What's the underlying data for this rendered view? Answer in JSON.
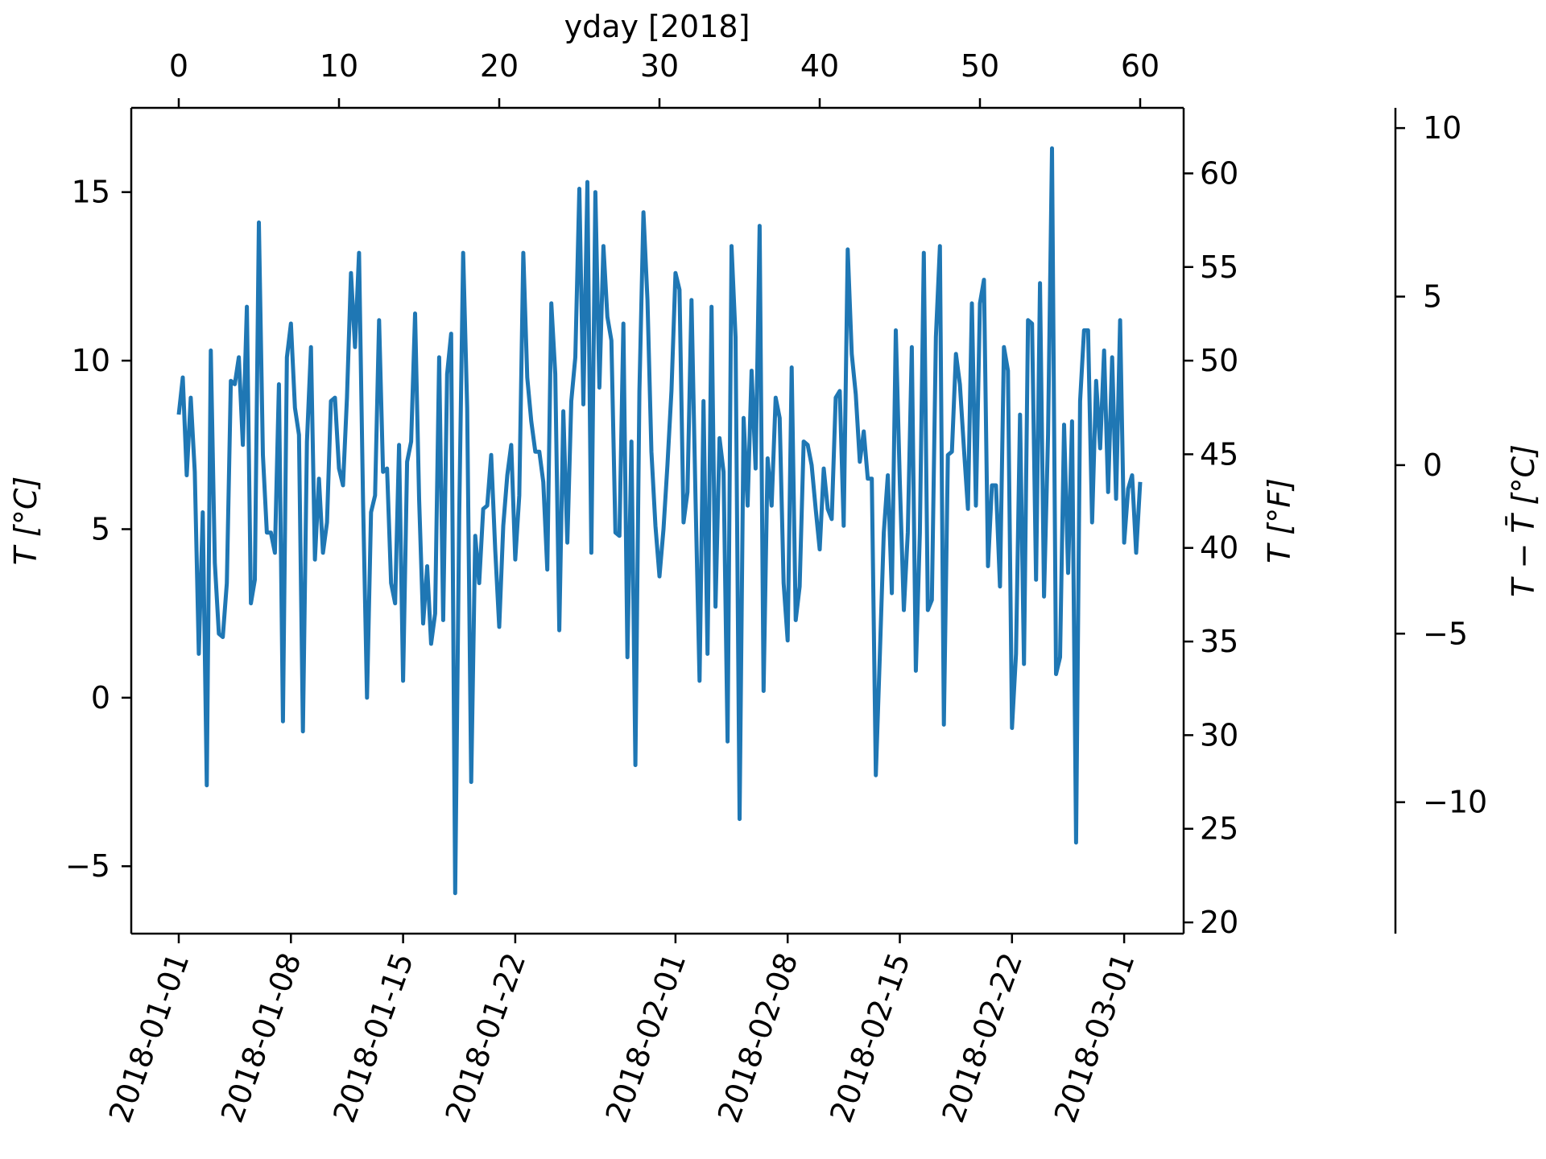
{
  "chart_data": {
    "type": "line",
    "top_axis": {
      "label": "yday [2018]",
      "ticks": [
        "0",
        "10",
        "20",
        "30",
        "40",
        "50",
        "60"
      ],
      "range": [
        0,
        60
      ]
    },
    "left_axis": {
      "label": "T [°C]",
      "ticks": [
        "−5",
        "0",
        "5",
        "10",
        "15"
      ],
      "range": [
        -7,
        17.5
      ]
    },
    "right_axis": {
      "label": "T [°F]",
      "ticks": [
        "20",
        "25",
        "30",
        "35",
        "40",
        "45",
        "50",
        "55",
        "60"
      ],
      "range": [
        19.4,
        63.5
      ]
    },
    "far_right_axis": {
      "label": "T − T̄ [°C]",
      "ticks": [
        "−10",
        "−5",
        "0",
        "5",
        "10"
      ],
      "range": [
        -13.9,
        10.6
      ]
    },
    "bottom_axis": {
      "ticks": [
        "2018-01-01",
        "2018-01-08",
        "2018-01-15",
        "2018-01-22",
        "2018-02-01",
        "2018-02-08",
        "2018-02-15",
        "2018-02-22",
        "2018-03-01"
      ]
    },
    "grid": false,
    "colors": {
      "series": "#1f77b4"
    },
    "series": [
      {
        "x_start": "2018-01-01",
        "x_step_days": 0.25,
        "values": [
          8.4,
          9.5,
          6.6,
          8.9,
          6.7,
          1.3,
          5.5,
          -2.6,
          10.3,
          4.0,
          1.9,
          1.8,
          3.4,
          9.4,
          9.3,
          10.1,
          7.5,
          11.6,
          2.8,
          3.5,
          14.1,
          7.2,
          4.9,
          4.9,
          4.3,
          9.3,
          -0.7,
          10.1,
          11.1,
          8.6,
          7.8,
          -1.0,
          7.6,
          10.4,
          4.1,
          6.5,
          4.3,
          5.2,
          8.8,
          8.9,
          6.8,
          6.3,
          8.9,
          12.6,
          10.4,
          13.2,
          5.8,
          0.0,
          5.5,
          6.0,
          11.2,
          6.7,
          6.8,
          3.4,
          2.8,
          7.5,
          0.5,
          7.0,
          7.6,
          11.4,
          5.9,
          2.2,
          3.9,
          1.6,
          2.5,
          10.1,
          2.3,
          9.6,
          10.8,
          -5.8,
          5.4,
          13.2,
          8.6,
          -2.5,
          4.8,
          3.4,
          5.6,
          5.7,
          7.2,
          4.4,
          2.1,
          5.1,
          6.6,
          7.5,
          4.1,
          6.0,
          13.2,
          9.5,
          8.2,
          7.3,
          7.3,
          6.4,
          3.8,
          11.7,
          9.6,
          2.0,
          8.5,
          4.6,
          8.8,
          10.1,
          15.1,
          8.7,
          15.3,
          4.3,
          15.0,
          9.2,
          13.4,
          11.3,
          10.6,
          4.9,
          4.8,
          11.1,
          1.2,
          7.6,
          -2.0,
          9.1,
          14.4,
          11.8,
          7.3,
          5.1,
          3.6,
          5.0,
          6.9,
          9.1,
          12.6,
          12.1,
          5.2,
          6.1,
          11.8,
          5.9,
          0.5,
          8.8,
          1.3,
          11.6,
          2.7,
          7.7,
          6.7,
          -1.3,
          13.4,
          10.7,
          -3.6,
          8.3,
          5.7,
          9.7,
          6.8,
          14.0,
          0.2,
          7.1,
          5.7,
          8.9,
          8.3,
          3.4,
          1.7,
          9.8,
          2.3,
          3.3,
          7.6,
          7.5,
          6.9,
          5.6,
          4.4,
          6.8,
          5.6,
          5.3,
          8.9,
          9.1,
          5.1,
          13.3,
          10.2,
          9.0,
          7.0,
          7.9,
          6.5,
          6.5,
          -2.3,
          1.2,
          4.9,
          6.6,
          3.1,
          10.9,
          6.4,
          2.6,
          4.9,
          10.4,
          0.8,
          4.9,
          13.2,
          2.6,
          2.9,
          10.7,
          13.4,
          -0.8,
          7.2,
          7.3,
          10.2,
          9.3,
          7.4,
          5.6,
          11.7,
          5.7,
          11.7,
          12.4,
          3.9,
          6.3,
          6.3,
          3.3,
          10.4,
          9.7,
          -0.9,
          1.3,
          8.4,
          1.0,
          11.2,
          11.1,
          3.5,
          12.3,
          3.0,
          7.8,
          16.3,
          0.7,
          1.2,
          8.1,
          3.7,
          8.2,
          -4.3,
          8.8,
          10.9,
          10.9,
          5.2,
          9.4,
          7.4,
          10.3,
          6.1,
          10.1,
          5.9,
          11.2,
          4.6,
          6.2,
          6.6,
          4.3,
          6.4
        ]
      }
    ]
  }
}
